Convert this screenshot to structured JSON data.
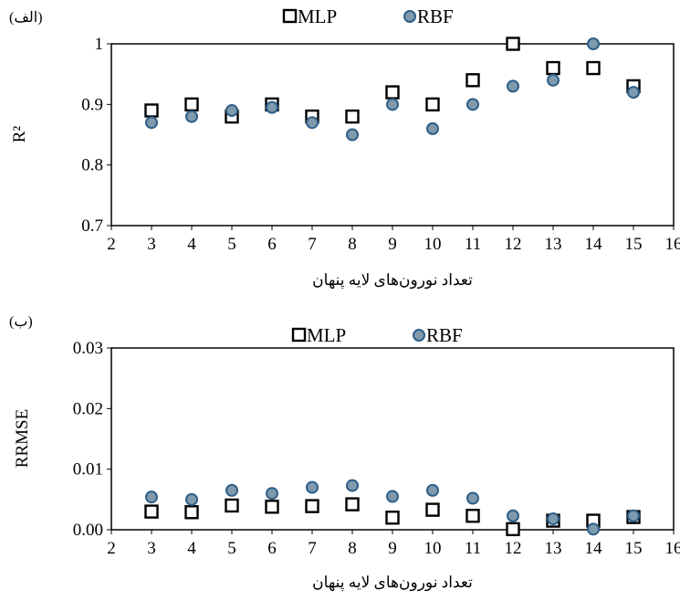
{
  "chart_data": [
    {
      "type": "scatter",
      "panel_label": "(الف)",
      "xlabel": "تعداد نورون‌های لایه پنهان",
      "ylabel": "R²",
      "xlim": [
        2,
        16
      ],
      "ylim": [
        0.7,
        1.0
      ],
      "x_ticks": [
        "2",
        "3",
        "4",
        "5",
        "6",
        "7",
        "8",
        "9",
        "10",
        "11",
        "12",
        "13",
        "14",
        "15",
        "16"
      ],
      "y_ticks": [
        "0.7",
        "0.8",
        "0.9",
        "1"
      ],
      "legend_position": "top",
      "grid": false,
      "series": [
        {
          "name": "MLP",
          "marker": "hollow-square",
          "color": "#000000",
          "x": [
            3,
            4,
            5,
            6,
            7,
            8,
            9,
            10,
            11,
            12,
            13,
            14,
            15
          ],
          "values": [
            0.89,
            0.9,
            0.88,
            0.9,
            0.88,
            0.88,
            0.92,
            0.9,
            0.94,
            1.0,
            0.96,
            0.96,
            0.93
          ]
        },
        {
          "name": "RBF",
          "marker": "filled-circle",
          "color": "#7f9aac",
          "edge_color": "#2e5f8a",
          "x": [
            3,
            4,
            5,
            6,
            7,
            8,
            9,
            10,
            11,
            12,
            13,
            14,
            15
          ],
          "values": [
            0.87,
            0.88,
            0.89,
            0.895,
            0.87,
            0.85,
            0.9,
            0.86,
            0.9,
            0.93,
            0.94,
            1.0,
            0.92
          ]
        }
      ]
    },
    {
      "type": "scatter",
      "panel_label": "(ب)",
      "xlabel": "تعداد نورون‌های لایه پنهان",
      "ylabel": "RRMSE",
      "xlim": [
        2,
        16
      ],
      "ylim": [
        0,
        0.03
      ],
      "x_ticks": [
        "2",
        "3",
        "4",
        "5",
        "6",
        "7",
        "8",
        "9",
        "10",
        "11",
        "12",
        "13",
        "14",
        "15",
        "16"
      ],
      "y_ticks": [
        "0.00",
        "0.01",
        "0.02",
        "0.03"
      ],
      "legend_position": "top",
      "grid": false,
      "series": [
        {
          "name": "MLP",
          "marker": "hollow-square",
          "color": "#000000",
          "x": [
            3,
            4,
            5,
            6,
            7,
            8,
            9,
            10,
            11,
            12,
            13,
            14,
            15
          ],
          "values": [
            0.003,
            0.0029,
            0.004,
            0.0038,
            0.0039,
            0.0042,
            0.002,
            0.0033,
            0.0023,
            0.0001,
            0.0015,
            0.0015,
            0.0021
          ]
        },
        {
          "name": "RBF",
          "marker": "filled-circle",
          "color": "#7f9aac",
          "edge_color": "#2e5f8a",
          "x": [
            3,
            4,
            5,
            6,
            7,
            8,
            9,
            10,
            11,
            12,
            13,
            14,
            15
          ],
          "values": [
            0.0054,
            0.005,
            0.0065,
            0.006,
            0.007,
            0.0073,
            0.0055,
            0.0065,
            0.0052,
            0.0023,
            0.0018,
            0.0001,
            0.0023
          ]
        }
      ]
    }
  ]
}
